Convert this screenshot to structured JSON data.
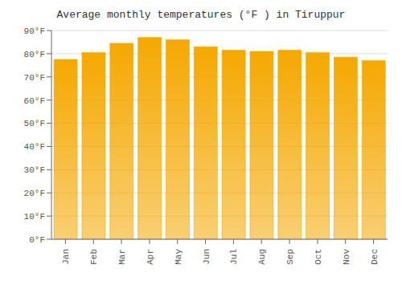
{
  "chart_data": {
    "type": "bar",
    "title": "Average monthly temperatures (°F ) in Tiruppur",
    "categories": [
      "Jan",
      "Feb",
      "Mar",
      "Apr",
      "May",
      "Jun",
      "Jul",
      "Aug",
      "Sep",
      "Oct",
      "Nov",
      "Dec"
    ],
    "values": [
      77.5,
      80.5,
      84.5,
      87.0,
      86.0,
      83.0,
      81.5,
      81.0,
      81.5,
      80.5,
      78.5,
      77.0
    ],
    "color": "#F5A800",
    "ylim": [
      0,
      90
    ],
    "yticks": [
      {
        "value": 0,
        "label": "0°F"
      },
      {
        "value": 10,
        "label": "10°F"
      },
      {
        "value": 20,
        "label": "20°F"
      },
      {
        "value": 30,
        "label": "30°F"
      },
      {
        "value": 40,
        "label": "40°F"
      },
      {
        "value": 50,
        "label": "50°F"
      },
      {
        "value": 60,
        "label": "60°F"
      },
      {
        "value": 70,
        "label": "70°F"
      },
      {
        "value": 80,
        "label": "80°F"
      },
      {
        "value": 90,
        "label": "90°F"
      }
    ],
    "grid": true
  }
}
